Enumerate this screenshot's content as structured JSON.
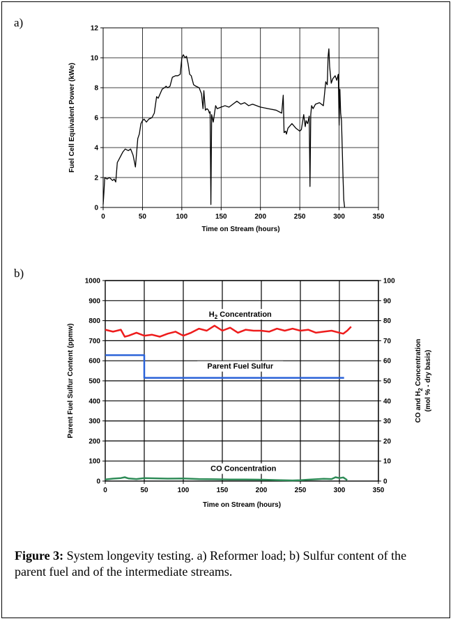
{
  "figure": {
    "caption_label": "Figure 3:",
    "caption_text": " System longevity testing. a) Reformer load; b) Sulfur content of the parent fuel and of the intermediate streams."
  },
  "chart_data": [
    {
      "panel": "a)",
      "type": "line",
      "xlabel": "Time on Stream (hours)",
      "ylabel": "Fuel Cell Equivalent Power (kWe)",
      "xlim": [
        0,
        350
      ],
      "ylim": [
        0,
        12
      ],
      "xticks": [
        0,
        50,
        100,
        150,
        200,
        250,
        300,
        350
      ],
      "yticks": [
        0,
        2,
        4,
        6,
        8,
        10,
        12
      ],
      "grid": true,
      "series": [
        {
          "color": "#000000",
          "x": [
            0,
            1,
            2,
            5,
            8,
            10,
            12,
            14,
            16,
            18,
            20,
            22,
            25,
            28,
            32,
            35,
            38,
            40,
            41,
            42,
            44,
            46,
            48,
            50,
            52,
            55,
            58,
            62,
            65,
            68,
            70,
            75,
            78,
            80,
            82,
            85,
            88,
            92,
            95,
            98,
            100,
            102,
            104,
            106,
            108,
            110,
            112,
            115,
            118,
            122,
            125,
            127,
            128,
            130,
            132,
            134,
            135,
            136,
            137,
            138,
            140,
            143,
            145,
            150,
            155,
            160,
            165,
            170,
            175,
            180,
            185,
            190,
            200,
            210,
            220,
            227,
            229,
            230,
            232,
            233,
            235,
            240,
            245,
            250,
            252,
            255,
            257,
            258,
            260,
            262,
            263,
            264,
            265,
            267,
            270,
            275,
            280,
            283,
            285,
            286,
            287,
            288,
            290,
            292,
            295,
            297,
            299,
            300,
            301,
            302,
            303,
            305,
            306,
            307
          ],
          "y": [
            0.2,
            1.0,
            2.0,
            1.9,
            2.0,
            1.9,
            1.8,
            1.9,
            1.7,
            3.0,
            3.2,
            3.4,
            3.7,
            3.9,
            3.8,
            3.9,
            3.5,
            3.0,
            2.7,
            3.3,
            4.6,
            4.9,
            5.6,
            5.8,
            5.9,
            5.7,
            5.9,
            6.0,
            6.3,
            7.4,
            7.3,
            7.9,
            8.0,
            8.1,
            8.0,
            8.1,
            8.7,
            8.8,
            8.8,
            8.9,
            10.0,
            10.2,
            10.0,
            10.1,
            9.6,
            8.9,
            8.8,
            8.2,
            8.1,
            8.0,
            7.6,
            6.6,
            7.8,
            6.5,
            6.6,
            6.5,
            6.3,
            6.4,
            0.2,
            6.2,
            5.7,
            6.8,
            6.6,
            6.7,
            6.8,
            6.7,
            6.9,
            7.1,
            6.9,
            7.0,
            6.8,
            6.9,
            6.7,
            6.6,
            6.5,
            6.3,
            7.5,
            5.0,
            5.1,
            4.9,
            5.3,
            5.6,
            5.3,
            5.1,
            5.2,
            6.2,
            5.4,
            5.8,
            5.6,
            6.1,
            1.4,
            6.2,
            6.8,
            6.6,
            6.9,
            7.0,
            6.8,
            8.4,
            8.2,
            10.1,
            10.6,
            9.4,
            8.3,
            8.6,
            8.8,
            8.5,
            8.9,
            5.5,
            7.9,
            6.3,
            5.8,
            2.0,
            0.5,
            0.0
          ]
        }
      ]
    },
    {
      "panel": "b)",
      "type": "line",
      "xlabel": "Time on Stream (hours)",
      "ylabel": "Parent Fuel Sulfur Content (ppmw)",
      "y2label": "CO and H2 Concentration (mol % - dry basis)",
      "xlim": [
        0,
        350
      ],
      "ylim": [
        0,
        1000
      ],
      "y2lim": [
        0,
        100
      ],
      "xticks": [
        0,
        50,
        100,
        150,
        200,
        250,
        300,
        350
      ],
      "yticks": [
        0,
        100,
        200,
        300,
        400,
        500,
        600,
        700,
        800,
        900,
        1000
      ],
      "y2ticks": [
        0,
        10,
        20,
        30,
        40,
        50,
        60,
        70,
        80,
        90,
        100
      ],
      "grid": true,
      "annotations": [
        "H2 Concentration",
        "Parent Fuel Sulfur",
        "CO Concentration"
      ],
      "series": [
        {
          "color": "#ee1c1c",
          "axis": "right",
          "x": [
            0,
            10,
            20,
            25,
            30,
            40,
            50,
            60,
            70,
            80,
            90,
            100,
            110,
            120,
            130,
            140,
            150,
            160,
            170,
            180,
            190,
            200,
            210,
            220,
            230,
            240,
            250,
            260,
            270,
            280,
            290,
            300,
            305,
            310,
            315
          ],
          "y": [
            75.5,
            74.5,
            75.5,
            72,
            72.5,
            74,
            72.5,
            73,
            72,
            73.5,
            74.5,
            72.5,
            74,
            76,
            75,
            77.5,
            75,
            76.5,
            74,
            75.5,
            75,
            75,
            74.5,
            76,
            75,
            76,
            75,
            75.5,
            74,
            74.5,
            75,
            74,
            73.5,
            75,
            77
          ]
        },
        {
          "color": "#2a62d8",
          "axis": "left",
          "x": [
            0,
            50,
            50,
            306
          ],
          "y": [
            628,
            628,
            515,
            515
          ]
        },
        {
          "color": "#2e8b57",
          "axis": "right",
          "x": [
            0,
            10,
            20,
            25,
            30,
            40,
            50,
            60,
            80,
            100,
            120,
            140,
            160,
            180,
            200,
            220,
            240,
            250,
            260,
            280,
            290,
            295,
            300,
            305,
            310
          ],
          "y": [
            0.8,
            1.2,
            1.5,
            1.9,
            1.3,
            1.0,
            1.5,
            1.4,
            1.2,
            1.3,
            1.0,
            0.9,
            0.8,
            0.8,
            0.7,
            0.5,
            0.3,
            0.4,
            0.7,
            1.1,
            1.0,
            1.9,
            1.5,
            1.8,
            0.5
          ]
        }
      ]
    }
  ]
}
